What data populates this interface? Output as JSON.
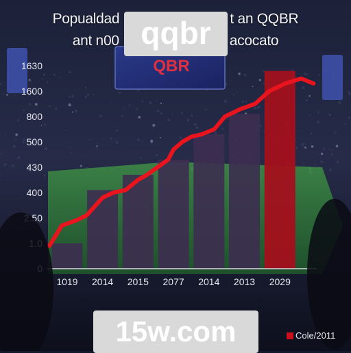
{
  "title": [
    "Popualdad",
    "t an QQBR",
    "ant n00",
    "acocato"
  ],
  "watermarks": {
    "top": "qqbr",
    "bottom": "15w.com"
  },
  "screen_text": "QBR",
  "colors": {
    "line": "#e8141e",
    "bar": "#3d2e50",
    "highlight_bar": "#a3101c",
    "field": "#2f7a3a"
  },
  "chart_data": {
    "type": "bar",
    "categories": [
      "1019",
      "2014",
      "2015",
      "2077",
      "2014",
      "2013",
      "2029"
    ],
    "y_tick_labels": [
      "0",
      "1.0",
      "2.50",
      "400",
      "430",
      "500",
      "800",
      "1600",
      "1630"
    ],
    "x_tick_positions": [
      1,
      3,
      5,
      7,
      9,
      11,
      13
    ],
    "values": [
      1.0,
      3.1,
      3.7,
      4.3,
      5.3,
      6.1,
      7.8
    ],
    "highlight_from_index": 6,
    "line": {
      "x": [
        0,
        0.7,
        1.5,
        2.1,
        3.0,
        3.6,
        4.3,
        5.0,
        5.5,
        6.1,
        6.7,
        7.0,
        7.5,
        8.0,
        8.6,
        9.3,
        9.9,
        10.8,
        11.6,
        12.4,
        13.3,
        14.2,
        14.9
      ],
      "y": [
        0.9,
        1.7,
        1.9,
        2.1,
        2.8,
        3.0,
        3.1,
        3.5,
        3.7,
        4.0,
        4.3,
        4.7,
        5.0,
        5.2,
        5.3,
        5.5,
        6.0,
        6.3,
        6.5,
        7.0,
        7.3,
        7.5,
        7.3
      ],
      "color": "#e8141e"
    },
    "ylim": [
      0,
      8
    ],
    "xlim": [
      0,
      15
    ],
    "legend": {
      "label": "Cole/2011",
      "position": "bottom-right"
    },
    "grid": false
  }
}
